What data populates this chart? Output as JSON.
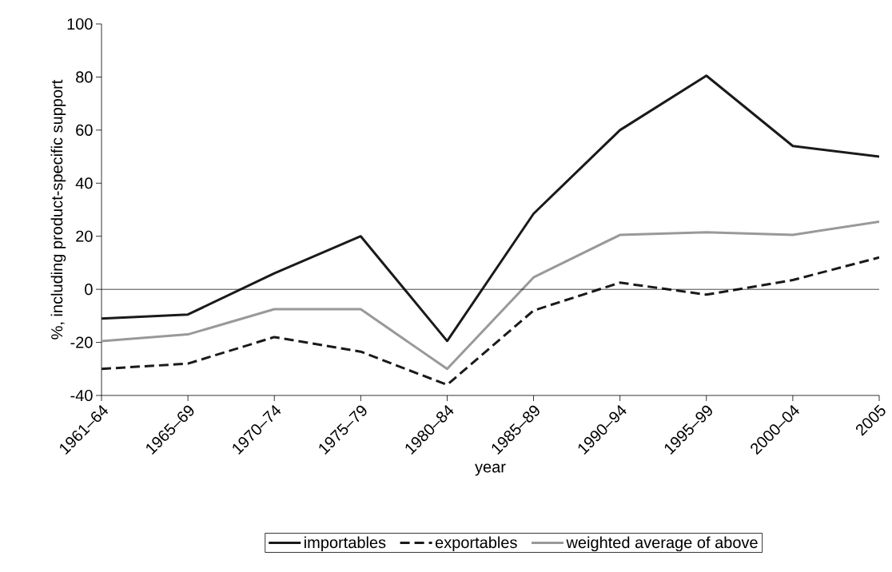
{
  "chart_data": {
    "type": "line",
    "xlabel": "year",
    "ylabel": "%, including product-specific support",
    "categories": [
      "1961–64",
      "1965–69",
      "1970–74",
      "1975–79",
      "1980–84",
      "1985–89",
      "1990–94",
      "1995–99",
      "2000–04",
      "2005"
    ],
    "series": [
      {
        "name": "importables",
        "color": "#1a1a1a",
        "line_style": "solid",
        "values": [
          -11,
          -9.5,
          6,
          20,
          -19.5,
          28.5,
          60,
          80.5,
          54,
          50
        ]
      },
      {
        "name": "exportables",
        "color": "#1a1a1a",
        "line_style": "dashed",
        "values": [
          -30,
          -28,
          -18,
          -23.5,
          -36,
          -8,
          2.5,
          -2,
          3.5,
          12
        ]
      },
      {
        "name": "weighted average of above",
        "color": "#999999",
        "line_style": "solid",
        "values": [
          -19.5,
          -17,
          -7.5,
          -7.5,
          -30,
          4.5,
          20.5,
          21.5,
          20.5,
          25.5
        ]
      }
    ],
    "ylim": [
      -40,
      100
    ],
    "yticks": [
      -40,
      -20,
      0,
      20,
      40,
      60,
      80,
      100
    ],
    "ref_lines": [
      {
        "axis": "y",
        "value": 0,
        "color": "#000000"
      }
    ],
    "grid": false,
    "legend": "bottom"
  }
}
